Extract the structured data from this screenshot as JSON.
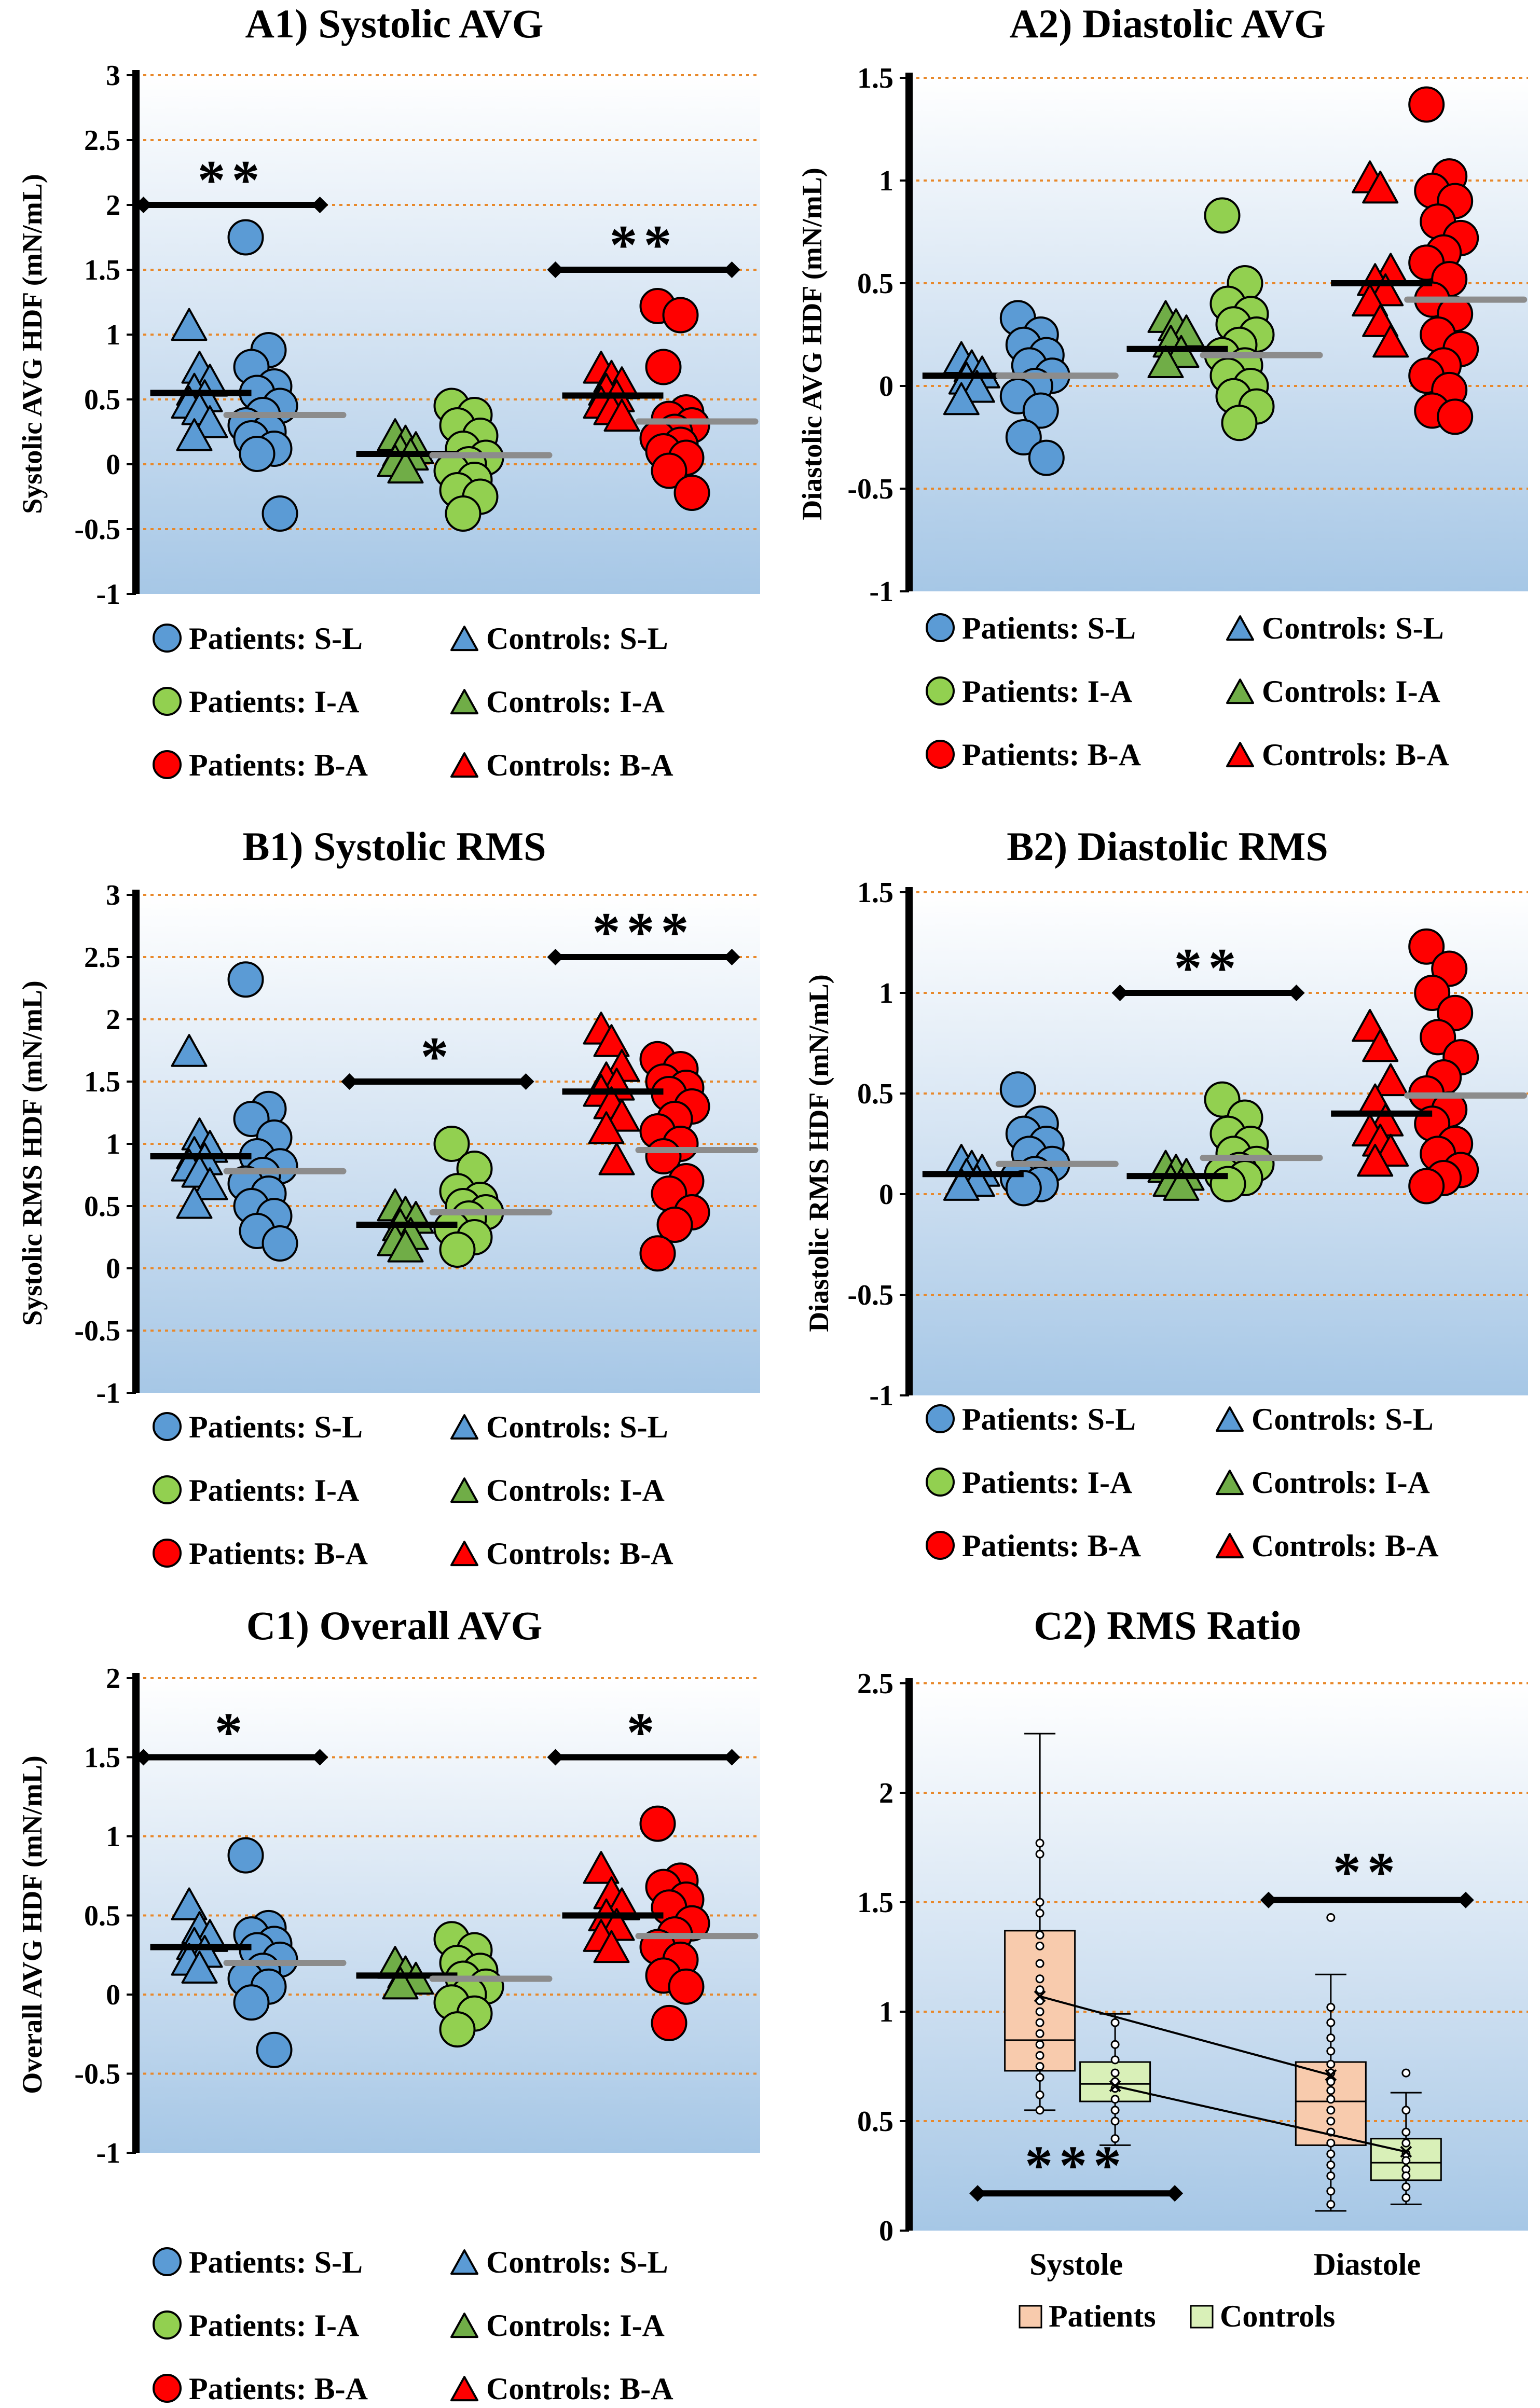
{
  "chart_data": [
    {
      "id": "A1",
      "type": "scatter",
      "title": "A1) Systolic AVG",
      "ylabel": "Systolic AVG HDF (mN/mL)",
      "ylim": [
        -1,
        3
      ],
      "yticks": [
        -1,
        -0.5,
        0,
        0.5,
        1,
        1.5,
        2,
        2.5,
        3
      ],
      "ytick_labels": [
        "-1",
        "-0.5",
        "0",
        "0.5",
        "1",
        "1.5",
        "2",
        "2.5",
        "3"
      ],
      "groups": [
        {
          "name": "S-L",
          "color": "#5b9bd5",
          "controls": [
            1.05,
            0.72,
            0.62,
            0.55,
            0.5,
            0.45,
            0.4,
            0.3,
            0.2
          ],
          "patients": [
            1.75,
            0.88,
            0.75,
            0.6,
            0.55,
            0.45,
            0.38,
            0.3,
            0.25,
            0.2,
            0.12,
            0.08,
            -0.38
          ],
          "control_mean": 0.55,
          "patient_mean": 0.38
        },
        {
          "name": "I-A",
          "color": "#92d050",
          "controls": [
            0.2,
            0.15,
            0.1,
            0.08,
            0.05,
            0.0,
            -0.05
          ],
          "patients": [
            0.45,
            0.38,
            0.3,
            0.22,
            0.12,
            0.05,
            0.0,
            -0.05,
            -0.12,
            -0.2,
            -0.25,
            -0.38
          ],
          "control_mean": 0.08,
          "patient_mean": 0.07
        },
        {
          "name": "B-A",
          "color": "#ff0000",
          "controls": [
            0.72,
            0.65,
            0.6,
            0.55,
            0.5,
            0.45,
            0.4,
            0.35
          ],
          "patients": [
            1.22,
            1.15,
            0.75,
            0.4,
            0.35,
            0.3,
            0.25,
            0.2,
            0.15,
            0.1,
            0.05,
            -0.05,
            -0.22
          ],
          "control_mean": 0.53,
          "patient_mean": 0.33
        }
      ],
      "significance": [
        {
          "group": "S-L",
          "y": 2.0,
          "label": "**"
        },
        {
          "group": "B-A",
          "y": 1.5,
          "label": "**"
        }
      ]
    },
    {
      "id": "A2",
      "type": "scatter",
      "title": "A2) Diastolic AVG",
      "ylabel": "Diastolic AVG HDF (mN/mL)",
      "ylim": [
        -1,
        1.5
      ],
      "yticks": [
        -1,
        -0.5,
        0,
        0.5,
        1,
        1.5
      ],
      "ytick_labels": [
        "-1",
        "-0.5",
        "0",
        "0.5",
        "1",
        "1.5"
      ],
      "groups": [
        {
          "name": "S-L",
          "color": "#5b9bd5",
          "controls": [
            0.12,
            0.08,
            0.05,
            0.02,
            -0.02,
            -0.08
          ],
          "patients": [
            0.33,
            0.25,
            0.2,
            0.15,
            0.1,
            0.05,
            0.0,
            -0.05,
            -0.12,
            -0.25,
            -0.35
          ],
          "control_mean": 0.05,
          "patient_mean": 0.05
        },
        {
          "name": "I-A",
          "color": "#92d050",
          "controls": [
            0.32,
            0.28,
            0.25,
            0.2,
            0.15,
            0.1
          ],
          "patients": [
            0.83,
            0.5,
            0.4,
            0.35,
            0.3,
            0.25,
            0.2,
            0.15,
            0.1,
            0.05,
            0.0,
            -0.05,
            -0.1,
            -0.18
          ],
          "control_mean": 0.18,
          "patient_mean": 0.15
        },
        {
          "name": "B-A",
          "color": "#ff0000",
          "controls": [
            1.0,
            0.95,
            0.55,
            0.5,
            0.45,
            0.4,
            0.3,
            0.2
          ],
          "patients": [
            1.37,
            1.02,
            0.95,
            0.9,
            0.8,
            0.72,
            0.65,
            0.6,
            0.52,
            0.42,
            0.35,
            0.25,
            0.18,
            0.1,
            0.05,
            -0.02,
            -0.12,
            -0.15
          ],
          "control_mean": 0.5,
          "patient_mean": 0.42
        }
      ],
      "significance": []
    },
    {
      "id": "B1",
      "type": "scatter",
      "title": "B1) Systolic RMS",
      "ylabel": "Systolic RMS HDF (mN/mL)",
      "ylim": [
        -1,
        3
      ],
      "yticks": [
        -1,
        -0.5,
        0,
        0.5,
        1,
        1.5,
        2,
        2.5,
        3
      ],
      "ytick_labels": [
        "-1",
        "-0.5",
        "0",
        "0.5",
        "1",
        "1.5",
        "2",
        "2.5",
        "3"
      ],
      "groups": [
        {
          "name": "S-L",
          "color": "#5b9bd5",
          "controls": [
            1.72,
            1.05,
            0.95,
            0.9,
            0.85,
            0.8,
            0.75,
            0.65,
            0.5
          ],
          "patients": [
            2.32,
            1.28,
            1.2,
            1.05,
            0.9,
            0.82,
            0.75,
            0.68,
            0.6,
            0.5,
            0.42,
            0.3,
            0.2
          ],
          "control_mean": 0.9,
          "patient_mean": 0.78
        },
        {
          "name": "I-A",
          "color": "#92d050",
          "controls": [
            0.48,
            0.42,
            0.38,
            0.32,
            0.25,
            0.2,
            0.15
          ],
          "patients": [
            1.0,
            0.8,
            0.62,
            0.55,
            0.5,
            0.45,
            0.4,
            0.32,
            0.25,
            0.15
          ],
          "control_mean": 0.35,
          "patient_mean": 0.45
        },
        {
          "name": "B-A",
          "color": "#ff0000",
          "controls": [
            1.9,
            1.8,
            1.6,
            1.5,
            1.45,
            1.4,
            1.3,
            1.2,
            1.1,
            0.85
          ],
          "patients": [
            1.68,
            1.6,
            1.5,
            1.45,
            1.4,
            1.3,
            1.2,
            1.1,
            1.0,
            0.9,
            0.7,
            0.6,
            0.45,
            0.35,
            0.12
          ],
          "control_mean": 1.42,
          "patient_mean": 0.95
        }
      ],
      "significance": [
        {
          "group": "I-A",
          "y": 1.5,
          "label": "*"
        },
        {
          "group": "B-A",
          "y": 2.5,
          "label": "***"
        }
      ]
    },
    {
      "id": "B2",
      "type": "scatter",
      "title": "B2) Diastolic RMS",
      "ylabel": "Diastolic RMS HDF (mN/mL)",
      "ylim": [
        -1,
        1.5
      ],
      "yticks": [
        -1,
        -0.5,
        0,
        0.5,
        1,
        1.5
      ],
      "ytick_labels": [
        "-1",
        "-0.5",
        "0",
        "0.5",
        "1",
        "1.5"
      ],
      "groups": [
        {
          "name": "S-L",
          "color": "#5b9bd5",
          "controls": [
            0.15,
            0.12,
            0.1,
            0.08,
            0.05,
            0.03
          ],
          "patients": [
            0.52,
            0.35,
            0.3,
            0.25,
            0.2,
            0.15,
            0.1,
            0.08,
            0.05,
            0.03
          ],
          "control_mean": 0.1,
          "patient_mean": 0.15
        },
        {
          "name": "I-A",
          "color": "#92d050",
          "controls": [
            0.12,
            0.1,
            0.08,
            0.05,
            0.03
          ],
          "patients": [
            0.47,
            0.38,
            0.3,
            0.25,
            0.2,
            0.15,
            0.12,
            0.1,
            0.08,
            0.05
          ],
          "control_mean": 0.09,
          "patient_mean": 0.18
        },
        {
          "name": "B-A",
          "color": "#ff0000",
          "controls": [
            0.82,
            0.72,
            0.55,
            0.45,
            0.35,
            0.3,
            0.25,
            0.2,
            0.15
          ],
          "patients": [
            1.23,
            1.12,
            1.0,
            0.9,
            0.78,
            0.68,
            0.58,
            0.5,
            0.42,
            0.35,
            0.25,
            0.2,
            0.12,
            0.08,
            0.04
          ],
          "control_mean": 0.4,
          "patient_mean": 0.49
        }
      ],
      "significance": [
        {
          "group": "I-A",
          "y": 1.0,
          "label": "**"
        }
      ]
    },
    {
      "id": "C1",
      "type": "scatter",
      "title": "C1) Overall AVG",
      "ylabel": "Overall  AVG HDF (mN/mL)",
      "ylim": [
        -1,
        2
      ],
      "yticks": [
        -1,
        -0.5,
        0,
        0.5,
        1,
        1.5,
        2
      ],
      "ytick_labels": [
        "-1",
        "-0.5",
        "0",
        "0.5",
        "1",
        "1.5",
        "2"
      ],
      "groups": [
        {
          "name": "S-L",
          "color": "#5b9bd5",
          "controls": [
            0.55,
            0.4,
            0.35,
            0.3,
            0.25,
            0.2,
            0.15
          ],
          "patients": [
            0.88,
            0.42,
            0.38,
            0.32,
            0.28,
            0.22,
            0.15,
            0.1,
            0.05,
            -0.05,
            -0.35
          ],
          "control_mean": 0.3,
          "patient_mean": 0.2
        },
        {
          "name": "I-A",
          "color": "#92d050",
          "controls": [
            0.18,
            0.12,
            0.08,
            0.05
          ],
          "patients": [
            0.35,
            0.28,
            0.2,
            0.15,
            0.1,
            0.05,
            0.0,
            -0.05,
            -0.12,
            -0.22
          ],
          "control_mean": 0.12,
          "patient_mean": 0.1
        },
        {
          "name": "B-A",
          "color": "#ff0000",
          "controls": [
            0.78,
            0.62,
            0.55,
            0.48,
            0.42,
            0.35,
            0.28
          ],
          "patients": [
            1.08,
            0.72,
            0.68,
            0.6,
            0.55,
            0.45,
            0.38,
            0.3,
            0.22,
            0.12,
            0.05,
            -0.18
          ],
          "control_mean": 0.5,
          "patient_mean": 0.37
        }
      ],
      "significance": [
        {
          "group": "S-L",
          "y": 1.5,
          "label": "*"
        },
        {
          "group": "B-A",
          "y": 1.5,
          "label": "*"
        }
      ]
    },
    {
      "id": "C2",
      "type": "box",
      "title": "C2) RMS Ratio",
      "ylim": [
        0,
        2.5
      ],
      "yticks": [
        0,
        0.5,
        1,
        1.5,
        2,
        2.5
      ],
      "ytick_labels": [
        "0",
        "0.5",
        "1",
        "1.5",
        "2",
        "2.5"
      ],
      "categories": [
        "Systole",
        "Diastole"
      ],
      "series": [
        {
          "name": "Patients",
          "color": "#f8cbad",
          "boxes": [
            {
              "category": "Systole",
              "min": 0.55,
              "q1": 0.73,
              "median": 0.87,
              "q3": 1.37,
              "max": 2.27,
              "mean": 1.07,
              "points": [
                1.77,
                1.72,
                1.5,
                1.45,
                1.35,
                1.3,
                1.22,
                1.15,
                1.1,
                1.05,
                1.0,
                0.95,
                0.9,
                0.85,
                0.8,
                0.75,
                0.7,
                0.62,
                0.55
              ]
            },
            {
              "category": "Diastole",
              "min": 0.09,
              "q1": 0.39,
              "median": 0.59,
              "q3": 0.77,
              "max": 1.17,
              "mean": 0.71,
              "points": [
                1.43,
                1.02,
                0.95,
                0.88,
                0.82,
                0.76,
                0.72,
                0.68,
                0.64,
                0.6,
                0.55,
                0.5,
                0.45,
                0.4,
                0.35,
                0.3,
                0.25,
                0.18,
                0.12
              ]
            }
          ]
        },
        {
          "name": "Controls",
          "color": "#d9f0b8",
          "boxes": [
            {
              "category": "Systole",
              "min": 0.39,
              "q1": 0.59,
              "median": 0.67,
              "q3": 0.77,
              "max": 0.99,
              "mean": 0.66,
              "points": [
                0.95,
                0.85,
                0.78,
                0.72,
                0.68,
                0.65,
                0.6,
                0.55,
                0.5,
                0.42
              ]
            },
            {
              "category": "Diastole",
              "min": 0.12,
              "q1": 0.23,
              "median": 0.31,
              "q3": 0.42,
              "max": 0.63,
              "mean": 0.36,
              "points": [
                0.72,
                0.55,
                0.45,
                0.4,
                0.35,
                0.32,
                0.28,
                0.25,
                0.2,
                0.15
              ]
            }
          ]
        }
      ],
      "mean_lines": [
        {
          "series": "Patients",
          "from": 1.07,
          "to": 0.71
        },
        {
          "series": "Controls",
          "from": 0.66,
          "to": 0.36
        }
      ],
      "significance": [
        {
          "between": "Patients vs Controls",
          "category": "Systole",
          "y": 0.17,
          "label": "***"
        },
        {
          "between": "Patients vs Controls",
          "category": "Diastole",
          "y": 1.51,
          "label": "**"
        }
      ]
    }
  ],
  "scatter_legend": [
    {
      "label": "Patients: S-L",
      "shape": "circle",
      "color": "#5b9bd5"
    },
    {
      "label": "Controls: S-L",
      "shape": "triangle",
      "color": "#5b9bd5"
    },
    {
      "label": "Patients: I-A",
      "shape": "circle",
      "color": "#92d050"
    },
    {
      "label": "Controls: I-A",
      "shape": "triangle",
      "color": "#70ad47"
    },
    {
      "label": "Patients: B-A",
      "shape": "circle",
      "color": "#ff0000"
    },
    {
      "label": "Controls: B-A",
      "shape": "triangle",
      "color": "#ff0000"
    }
  ],
  "box_legend": [
    {
      "label": "Patients",
      "color": "#f8cbad"
    },
    {
      "label": "Controls",
      "color": "#d9f0b8"
    }
  ]
}
